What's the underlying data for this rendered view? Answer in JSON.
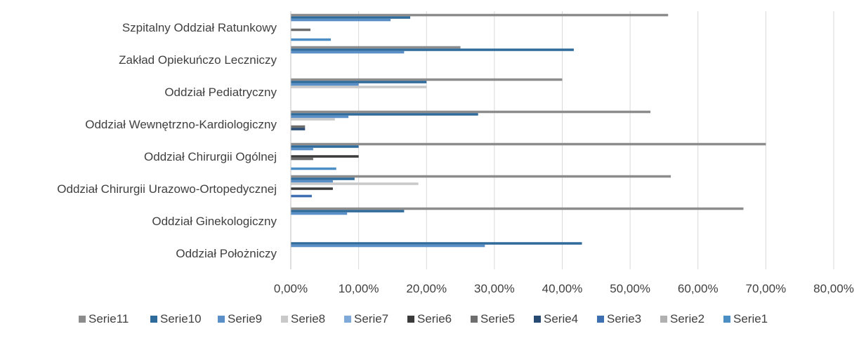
{
  "chart_data": {
    "type": "bar",
    "orientation": "horizontal",
    "xlim": [
      0,
      80
    ],
    "x_ticks": [
      "0,00%",
      "10,00%",
      "20,00%",
      "30,00%",
      "40,00%",
      "50,00%",
      "60,00%",
      "70,00%",
      "80,00%"
    ],
    "x_tick_values": [
      0,
      10,
      20,
      30,
      40,
      50,
      60,
      70,
      80
    ],
    "grid": true,
    "legend_position": "bottom",
    "categories": [
      "Szpitalny Oddział Ratunkowy",
      "Zakład Opiekuńczo Leczniczy",
      "Oddział Pediatryczny",
      "Oddział Wewnętrzno-Kardiologiczny",
      "Oddział Chirurgii Ogólnej",
      "Oddział Chirurgii Urazowo-Ortopedycznej",
      "Oddział Ginekologiczny",
      "Oddział Położniczy"
    ],
    "series": [
      {
        "name": "Serie11",
        "color": "#8c8c8c",
        "values": [
          55.6,
          25.0,
          40.0,
          53.0,
          70.0,
          56.0,
          66.7,
          0
        ]
      },
      {
        "name": "Serie10",
        "color": "#2e6a9a",
        "values": [
          17.6,
          41.7,
          20.0,
          27.6,
          10.0,
          9.4,
          16.7,
          42.9
        ]
      },
      {
        "name": "Serie9",
        "color": "#5b8fc7",
        "values": [
          14.7,
          16.7,
          10.0,
          8.5,
          3.3,
          6.2,
          8.3,
          28.6
        ]
      },
      {
        "name": "Serie8",
        "color": "#c9c9c9",
        "values": [
          0,
          0,
          20.0,
          6.5,
          0,
          18.8,
          0,
          0
        ]
      },
      {
        "name": "Serie7",
        "color": "#7ea9d8",
        "values": [
          0,
          0,
          0,
          0,
          0,
          0,
          0,
          0
        ]
      },
      {
        "name": "Serie6",
        "color": "#3a3a3a",
        "values": [
          0,
          0,
          0,
          0,
          10.0,
          6.2,
          0,
          0
        ]
      },
      {
        "name": "Serie5",
        "color": "#6e6e6e",
        "values": [
          2.9,
          0,
          0,
          2.1,
          3.3,
          0,
          0,
          0
        ]
      },
      {
        "name": "Serie4",
        "color": "#264a72",
        "values": [
          0,
          0,
          0,
          2.1,
          0,
          0,
          0,
          0
        ]
      },
      {
        "name": "Serie3",
        "color": "#3e6fb0",
        "values": [
          0,
          0,
          0,
          0,
          0,
          3.1,
          0,
          0
        ]
      },
      {
        "name": "Serie2",
        "color": "#b0b0b0",
        "values": [
          0,
          0,
          0,
          0,
          0,
          0,
          0,
          0
        ]
      },
      {
        "name": "Serie1",
        "color": "#4a8ec4",
        "values": [
          5.9,
          0,
          0,
          0,
          6.7,
          0,
          0,
          0
        ]
      }
    ]
  }
}
